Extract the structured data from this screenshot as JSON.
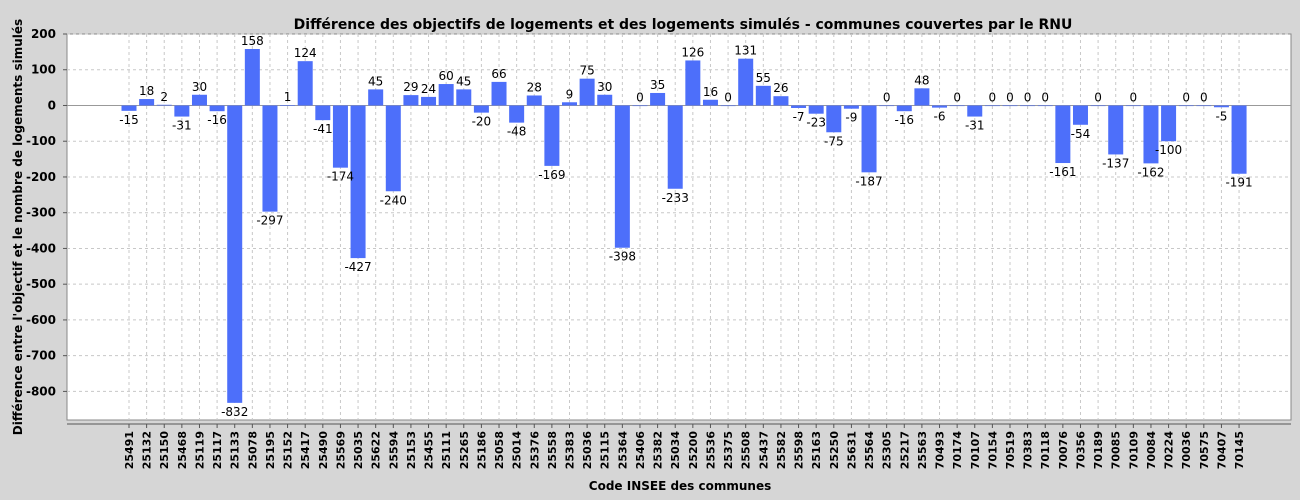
{
  "chart_data": {
    "type": "bar",
    "title": "Différence des objectifs de logements et des logements simulés - communes couvertes par le RNU",
    "xlabel": "Code INSEE des communes",
    "ylabel": "Différence entre l'objectif et le nombre de logements simulés",
    "ylim": [
      -880,
      200
    ],
    "yticks": [
      200,
      100,
      0,
      -100,
      -200,
      -300,
      -400,
      -500,
      -600,
      -700,
      -800
    ],
    "grid": true,
    "legend": "none",
    "categories": [
      "25491",
      "25132",
      "25150",
      "25468",
      "25119",
      "25117",
      "25133",
      "25078",
      "25195",
      "25152",
      "25417",
      "25490",
      "25569",
      "25035",
      "25622",
      "25594",
      "25153",
      "25455",
      "25111",
      "25265",
      "25186",
      "25058",
      "25014",
      "25376",
      "25558",
      "25383",
      "25036",
      "25115",
      "25364",
      "25406",
      "25382",
      "25034",
      "25200",
      "25536",
      "25375",
      "25508",
      "25437",
      "25582",
      "25598",
      "25163",
      "25250",
      "25631",
      "25564",
      "25305",
      "25217",
      "25563",
      "70493",
      "70174",
      "70107",
      "70154",
      "70519",
      "70383",
      "70118",
      "70076",
      "70356",
      "70189",
      "70085",
      "70109",
      "70084",
      "70224",
      "70036",
      "70575",
      "70407",
      "70145"
    ],
    "values": [
      -15,
      18,
      2,
      -31,
      30,
      -16,
      -832,
      158,
      -297,
      1,
      124,
      -41,
      -174,
      -427,
      45,
      -240,
      29,
      24,
      60,
      45,
      -20,
      66,
      -48,
      28,
      -169,
      9,
      75,
      30,
      -398,
      0,
      35,
      -233,
      126,
      16,
      0,
      131,
      55,
      26,
      -7,
      -23,
      -75,
      -9,
      -187,
      0,
      -16,
      48,
      -6,
      0,
      -31,
      0,
      0,
      0,
      0,
      -161,
      -54,
      0,
      -137,
      0,
      -162,
      -100,
      0,
      0,
      -5,
      -191
    ],
    "colors": {
      "bar": "#4d6ffa",
      "plot_bg": "#ffffff",
      "page_bg": "#d6d6d6",
      "grid": "#c8c8c8"
    }
  }
}
